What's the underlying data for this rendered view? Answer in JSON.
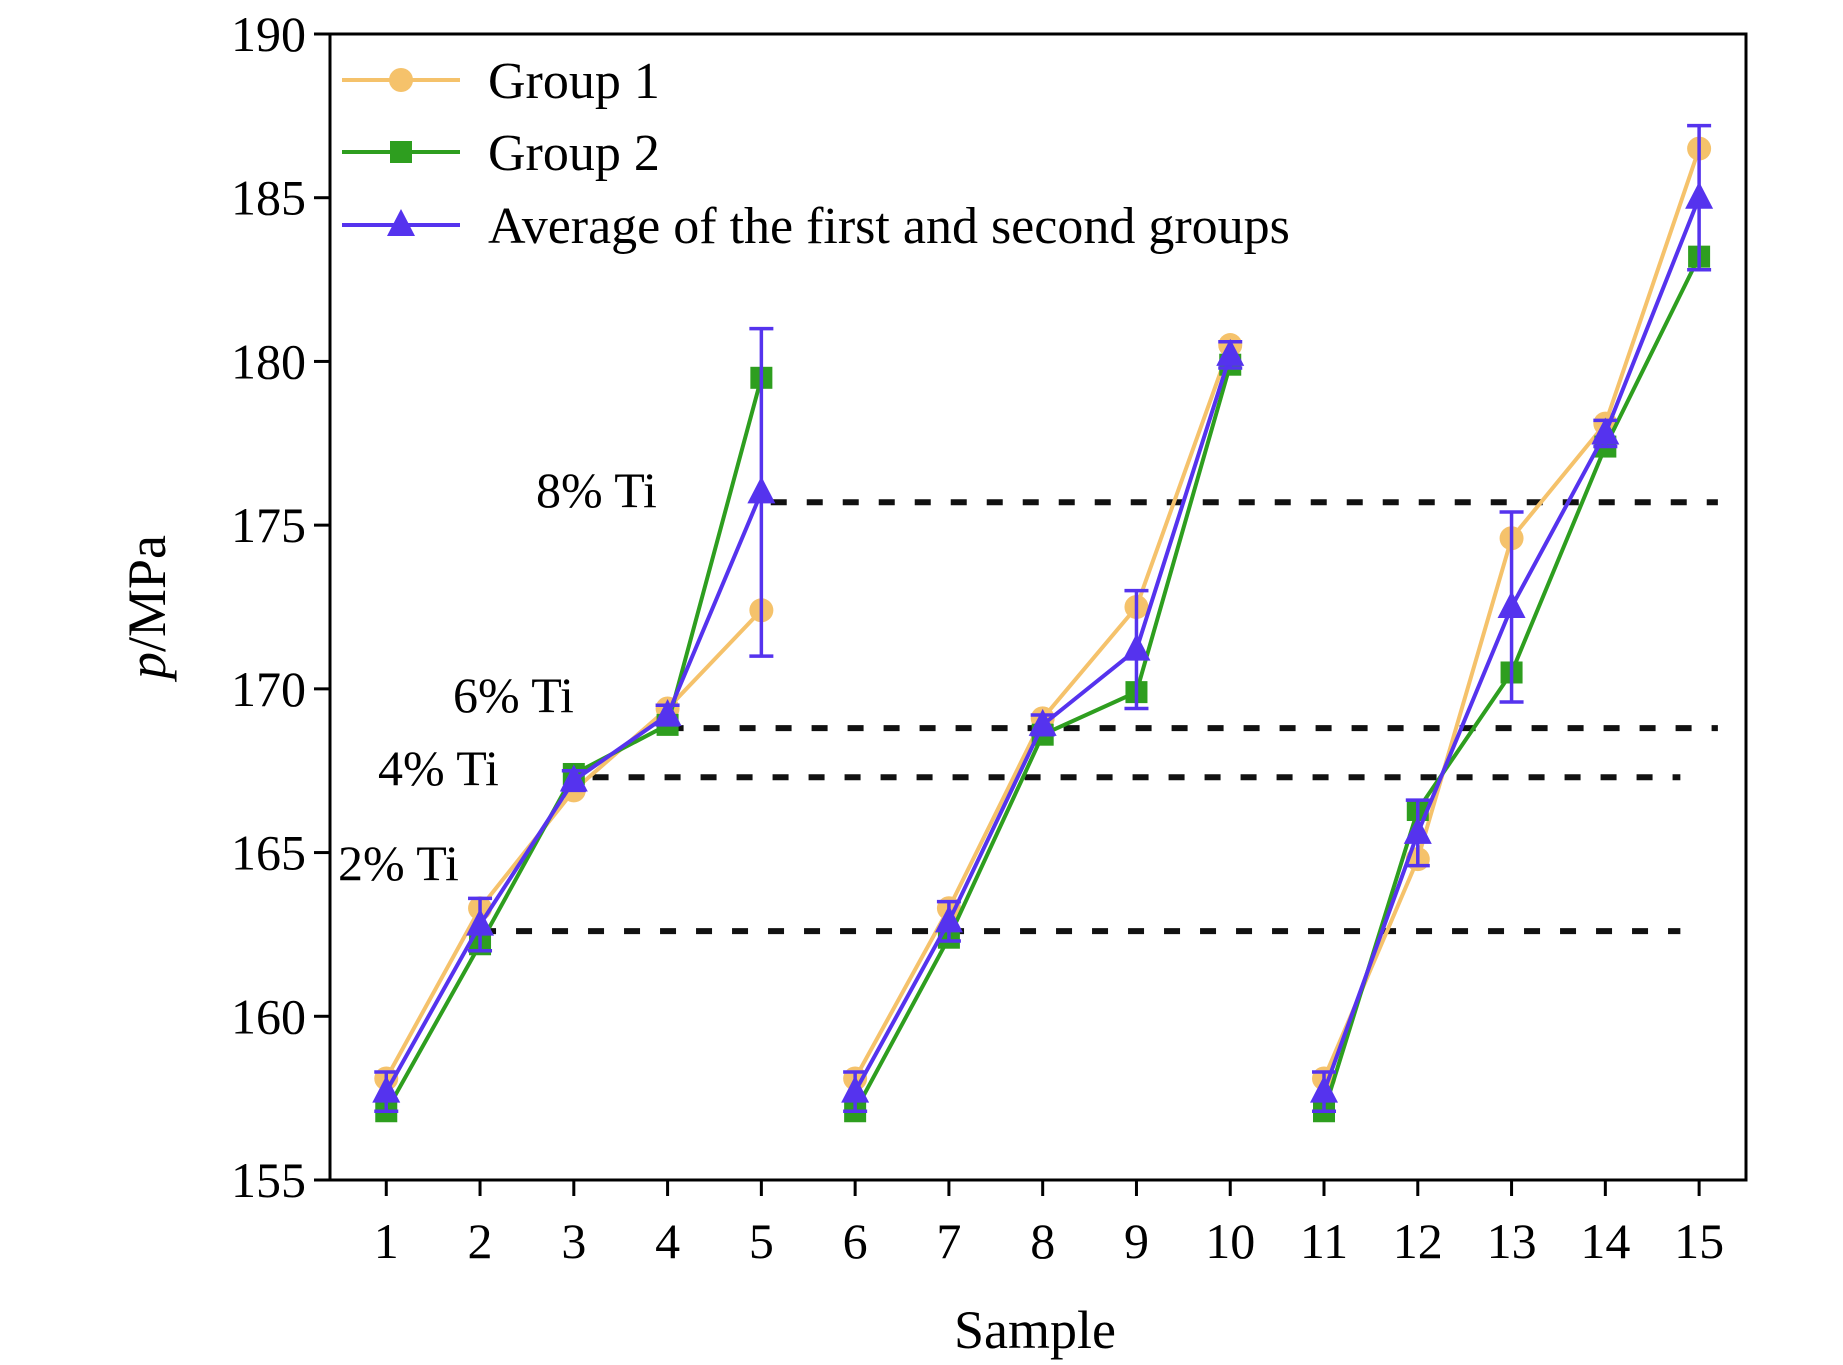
{
  "chart_data": {
    "type": "line",
    "xlabel": "Sample",
    "ylabel_italic": "p",
    "ylabel_rest": "/MPa",
    "x": [
      1,
      2,
      3,
      4,
      5,
      6,
      7,
      8,
      9,
      10,
      11,
      12,
      13,
      14,
      15
    ],
    "xlim": [
      0.4,
      15.5
    ],
    "ylim": [
      155,
      190
    ],
    "yticks": [
      155,
      160,
      165,
      170,
      175,
      180,
      185,
      190
    ],
    "legend_position": "top-left",
    "grid": false,
    "series": [
      {
        "name": "Group 1",
        "color": "#F5C26B",
        "marker": "circle",
        "segments": [
          [
            0,
            5
          ],
          [
            5,
            10
          ],
          [
            10,
            15
          ]
        ],
        "values": [
          158.1,
          163.3,
          166.9,
          169.4,
          172.4,
          158.1,
          163.3,
          169.1,
          172.5,
          180.5,
          158.1,
          164.8,
          174.6,
          178.1,
          186.5
        ]
      },
      {
        "name": "Group 2",
        "color": "#2E9E1F",
        "marker": "square",
        "segments": [
          [
            0,
            5
          ],
          [
            5,
            10
          ],
          [
            10,
            15
          ]
        ],
        "values": [
          157.1,
          162.2,
          167.4,
          168.9,
          179.5,
          157.1,
          162.4,
          168.6,
          169.9,
          179.9,
          157.1,
          166.3,
          170.5,
          177.4,
          183.2
        ]
      },
      {
        "name": "Average of the first and second groups",
        "color": "#5533EE",
        "marker": "triangle",
        "segments": [
          [
            0,
            5
          ],
          [
            5,
            10
          ],
          [
            10,
            15
          ]
        ],
        "values": [
          157.7,
          162.8,
          167.2,
          169.2,
          176.0,
          157.7,
          162.9,
          168.9,
          171.2,
          180.2,
          157.7,
          165.6,
          172.5,
          177.8,
          185.0
        ],
        "errors": [
          0.6,
          0.8,
          0.3,
          0.3,
          5.0,
          0.6,
          0.6,
          0.3,
          1.8,
          0.4,
          0.6,
          1.0,
          2.9,
          0.4,
          2.2
        ]
      }
    ],
    "reference_lines": [
      {
        "label": "2% Ti",
        "y": 162.6,
        "x_start": 2,
        "x_end": 14.8
      },
      {
        "label": "4% Ti",
        "y": 167.3,
        "x_start": 3.2,
        "x_end": 14.8
      },
      {
        "label": "6% Ti",
        "y": 168.8,
        "x_start": 4,
        "x_end": 15.2
      },
      {
        "label": "8% Ti",
        "y": 175.7,
        "x_start": 5.1,
        "x_end": 15.2
      }
    ]
  }
}
